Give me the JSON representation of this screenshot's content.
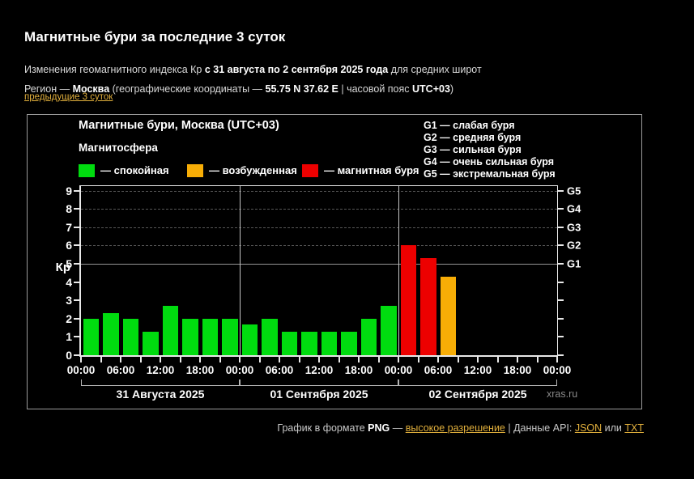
{
  "header": {
    "title": "Магнитные бури за последние 3 суток",
    "line1_prefix": "Изменения геомагнитного индекса Кр ",
    "line1_bold": "с 31 августа по 2 сентября 2025 года",
    "line1_suffix": " для средних широт",
    "line2_prefix": "Регион — ",
    "line2_region": "Москва",
    "line2_mid": " (географические координаты — ",
    "line2_coords": "55.75 N 37.62 E",
    "line2_tz_label": " | часовой пояс ",
    "line2_tz": "UTC+03",
    "line2_close": ")",
    "previous_link": "предыдущие 3 суток"
  },
  "chart": {
    "title": "Магнитные бури, Москва (UTC+03)",
    "subtitle": "Магнитосфера",
    "legend": [
      {
        "label": "— спокойная",
        "color": "#00dc0f"
      },
      {
        "label": "— возбужденная",
        "color": "#f7ad06"
      },
      {
        "label": "— магнитная буря",
        "color": "#ed0000"
      }
    ],
    "g_scale": [
      {
        "code": "G1",
        "desc": "— слабая буря"
      },
      {
        "code": "G2",
        "desc": "— средняя буря"
      },
      {
        "code": "G3",
        "desc": "— сильная буря"
      },
      {
        "code": "G4",
        "desc": "— очень сильная буря"
      },
      {
        "code": "G5",
        "desc": "— экстремальная буря"
      }
    ],
    "watermark": "xras.ru"
  },
  "chart_data": {
    "type": "bar",
    "title": "Магнитные бури, Москва (UTC+03)",
    "ylabel": "Кр",
    "ylim": [
      0,
      9.25
    ],
    "yticks": [
      0,
      1,
      2,
      3,
      4,
      5,
      6,
      7,
      8,
      9
    ],
    "interval_hours": 3,
    "x_axis_time_labels": [
      "00:00",
      "06:00",
      "12:00",
      "18:00",
      "00:00",
      "06:00",
      "12:00",
      "18:00",
      "00:00",
      "06:00",
      "12:00",
      "18:00",
      "00:00"
    ],
    "days": [
      {
        "date_label": "31 Августа 2025",
        "values": [
          2.0,
          2.3,
          2.0,
          1.3,
          2.7,
          2.0,
          2.0,
          2.0
        ]
      },
      {
        "date_label": "01 Сентября 2025",
        "values": [
          1.7,
          2.0,
          1.3,
          1.3,
          1.3,
          1.3,
          2.0,
          2.7
        ]
      },
      {
        "date_label": "02 Сентября 2025",
        "values": [
          6.0,
          5.3,
          4.3,
          null,
          null,
          null,
          null,
          null
        ]
      }
    ],
    "thresholds": {
      "excited_from": 4,
      "storm_from": 5
    },
    "g_levels": [
      {
        "kp": 5,
        "code": "G1"
      },
      {
        "kp": 6,
        "code": "G2"
      },
      {
        "kp": 7,
        "code": "G3"
      },
      {
        "kp": 8,
        "code": "G4"
      },
      {
        "kp": 9,
        "code": "G5"
      }
    ],
    "legend_position": "top",
    "grid": "dashed horizontal at Kp 5-9"
  },
  "colors": {
    "quiet": "#00dc0f",
    "excited": "#f7ad06",
    "storm": "#ed0000",
    "link": "#e2b03c",
    "axis": "#e8e8e8",
    "grid_dashed": "#565656",
    "grid_solid": "#969696",
    "day_line": "#c4c4c4",
    "watermark": "#8a8a8a"
  },
  "footer": {
    "prefix": "График в формате ",
    "png": "PNG",
    "dash": " — ",
    "hires": "высокое разрешение",
    "sep": "  |  ",
    "api_label": "Данные API: ",
    "json": "JSON",
    "or_word": " или ",
    "txt": "TXT"
  }
}
